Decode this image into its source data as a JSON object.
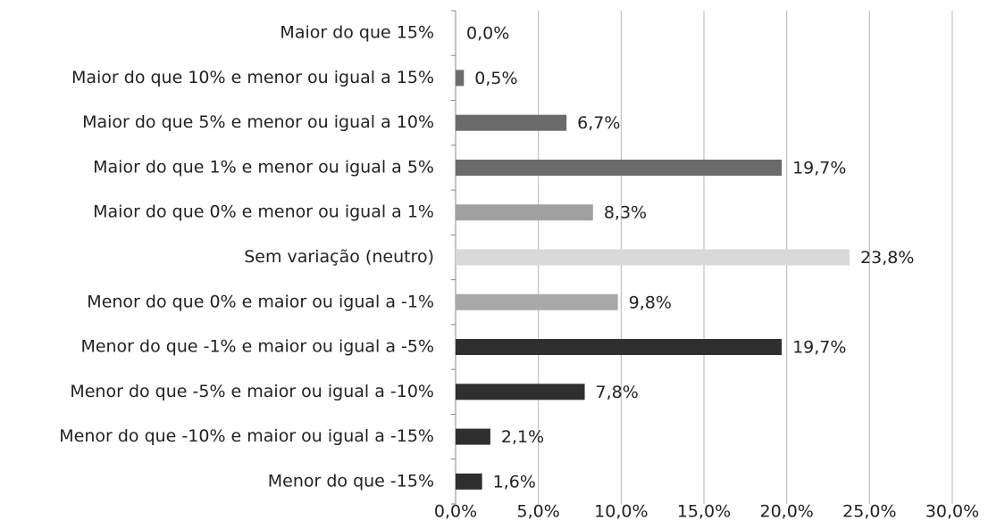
{
  "chart_data": {
    "type": "hbar",
    "categories": [
      "Maior do que 15%",
      "Maior do que 10% e menor ou igual a 15%",
      "Maior do que 5% e menor ou igual a 10%",
      "Maior do que 1% e menor ou igual a 5%",
      "Maior do que 0% e menor ou igual a 1%",
      "Sem variação (neutro)",
      "Menor do que 0% e maior ou igual a -1%",
      "Menor do que -1% e maior ou igual a -5%",
      "Menor do que -5% e maior ou igual a -10%",
      "Menor do que -10% e maior ou igual a -15%",
      "Menor do que -15%"
    ],
    "values": [
      0,
      0.5,
      6.7,
      19.7,
      8.3,
      23.8,
      9.8,
      19.7,
      7.8,
      2.1,
      1.6
    ],
    "value_labels": [
      "0,0%",
      "0,5%",
      "6,7%",
      "19,7%",
      "8,3%",
      "23,8%",
      "9,8%",
      "19,7%",
      "7,8%",
      "2,1%",
      "1,6%"
    ],
    "colors": [
      "#6b6b6b",
      "#6b6b6b",
      "#6b6b6b",
      "#6b6b6b",
      "#a0a0a0",
      "#d9d9d9",
      "#a8a8a8",
      "#2f2f2f",
      "#2f2f2f",
      "#2f2f2f",
      "#2f2f2f"
    ],
    "xlim": [
      0,
      30
    ],
    "xticks": [
      {
        "value": 0,
        "label": "0,0%"
      },
      {
        "value": 5,
        "label": "5,0%"
      },
      {
        "value": 10,
        "label": "10,0%"
      },
      {
        "value": 15,
        "label": "15,0%"
      },
      {
        "value": 20,
        "label": "20,0%"
      },
      {
        "value": 25,
        "label": "25,0%"
      },
      {
        "value": 30,
        "label": "30,0%"
      }
    ],
    "grid": true
  }
}
